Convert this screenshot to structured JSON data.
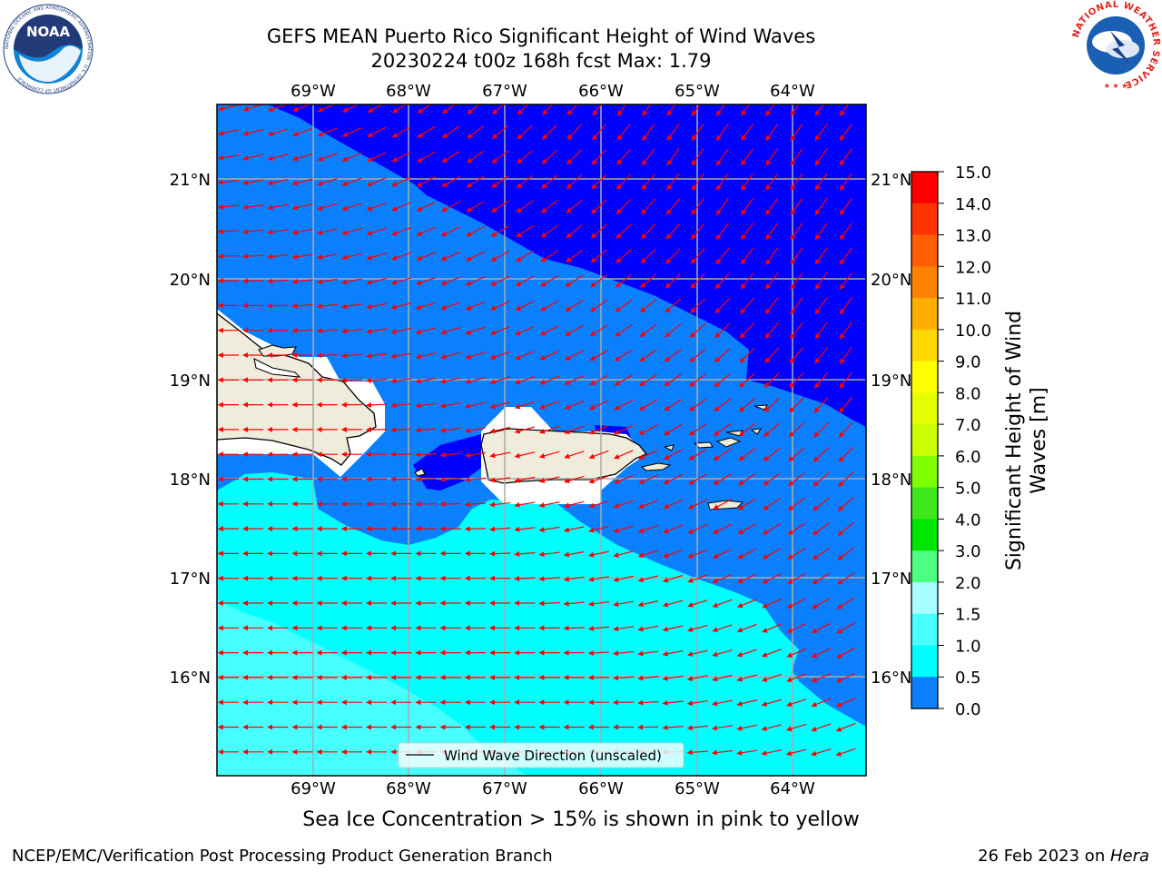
{
  "header": {
    "title_line1": "GEFS MEAN Puerto Rico Significant Height of Wind Waves",
    "title_line2": "20230224 t00z 168h fcst   Max: 1.79"
  },
  "map": {
    "lon_labels": [
      "69°W",
      "68°W",
      "67°W",
      "66°W",
      "65°W",
      "64°W"
    ],
    "lat_labels": [
      "21°N",
      "20°N",
      "19°N",
      "18°N",
      "17°N",
      "16°N"
    ],
    "legend_label": "Wind Wave Direction (unscaled)",
    "arrow_color": "#ff0000",
    "land_color": "#efecdc",
    "fill_colors": {
      "0.0-0.5": "#0000ff",
      "0.5-1.0": "#0a80ff",
      "1.0-1.5": "#00ffff",
      "1.5-2.0": "#47ffff"
    }
  },
  "colorbar": {
    "label": "Significant Height of Wind Waves [m]",
    "label_line1": "Significant Height of Wind",
    "label_line2": "Waves [m]",
    "ticks": [
      "15.0",
      "14.0",
      "13.0",
      "12.0",
      "11.0",
      "10.0",
      "9.0",
      "8.0",
      "7.0",
      "6.0",
      "5.0",
      "4.0",
      "3.0",
      "2.0",
      "1.5",
      "1.0",
      "0.5",
      "0.0"
    ],
    "colors": [
      "#ff0000",
      "#ff3300",
      "#ff5f00",
      "#ff8300",
      "#ffae00",
      "#ffd800",
      "#ffff00",
      "#e6ff00",
      "#c9ff00",
      "#7dff00",
      "#3fe61a",
      "#00e600",
      "#4dff80",
      "#a8ffff",
      "#47ffff",
      "#00ffff",
      "#0a80ff",
      "#0000ff"
    ]
  },
  "caption": "Sea Ice Concentration > 15% is shown in pink to yellow",
  "footer": {
    "left": "NCEP/EMC/Verification Post Processing Product Generation Branch",
    "date": "26 Feb 2023 on ",
    "machine": "Hera"
  },
  "logos": {
    "noaa_text": "NOAA",
    "noaa_ring": "NATIONAL OCEANIC AND ATMOSPHERIC ADMINISTRATION · U.S. DEPARTMENT OF COMMERCE",
    "nws_ring": "NATIONAL WEATHER SERVICE"
  }
}
